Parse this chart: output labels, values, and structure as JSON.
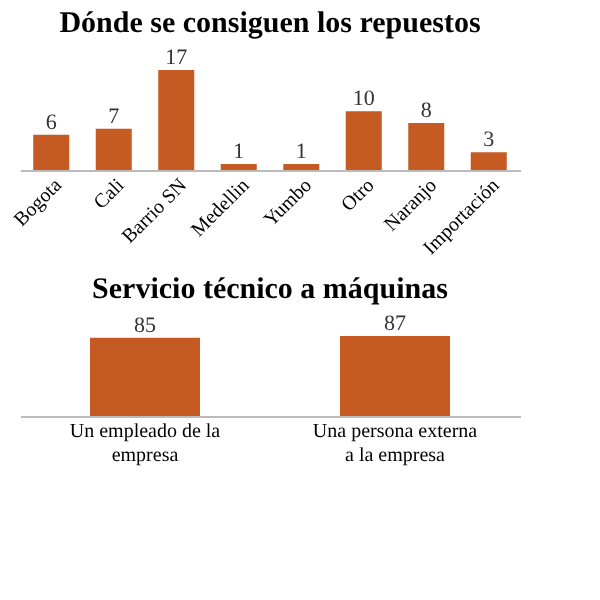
{
  "chart_data": [
    {
      "type": "bar",
      "title": "Dónde se consiguen los repuestos",
      "categories": [
        "Bogota",
        "Cali",
        "Barrio SN",
        "Medellin",
        "Yumbo",
        "Otro",
        "Naranjo",
        "Importación"
      ],
      "series": [
        {
          "color": "#c55a22",
          "values": [
            6,
            7,
            17,
            1,
            1,
            10,
            8,
            3
          ]
        }
      ],
      "data_labels": true
    },
    {
      "type": "bar",
      "title": "Servicio técnico a máquinas",
      "categories": [
        "Un empleado de la empresa",
        "Una persona externa a la empresa"
      ],
      "series": [
        {
          "color": "#c55a22",
          "values": [
            85,
            87
          ]
        }
      ],
      "data_labels": true
    }
  ]
}
